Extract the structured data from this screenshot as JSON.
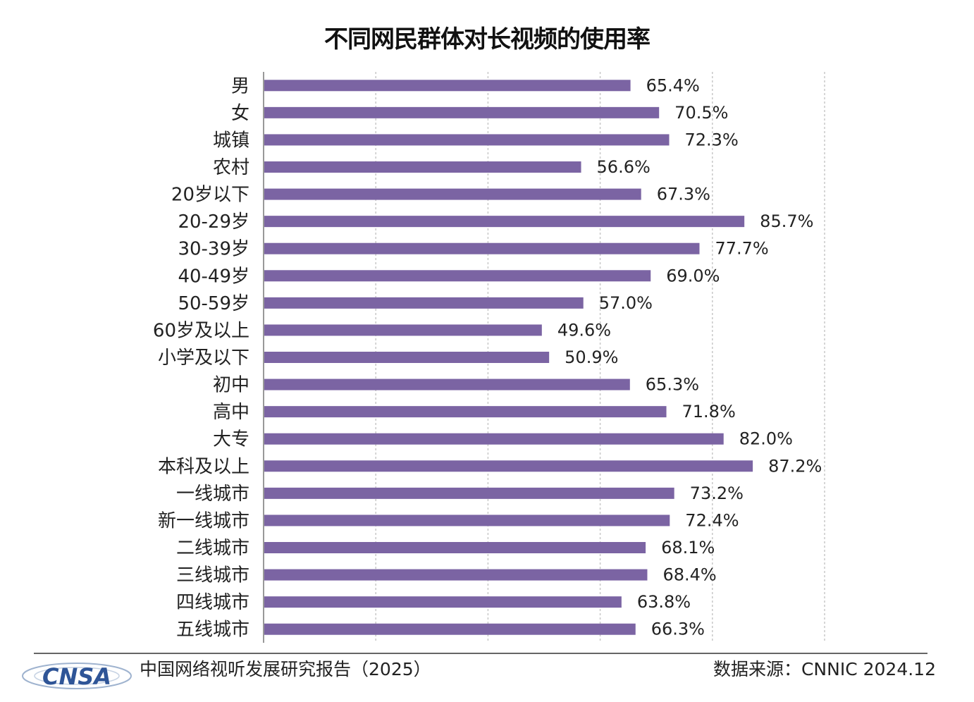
{
  "chart_data": {
    "type": "bar",
    "orientation": "horizontal",
    "title": "不同网民群体对长视频的使用率",
    "categories": [
      "男",
      "女",
      "城镇",
      "农村",
      "20岁以下",
      "20-29岁",
      "30-39岁",
      "40-49岁",
      "50-59岁",
      "60岁及以上",
      "小学及以下",
      "初中",
      "高中",
      "大专",
      "本科及以上",
      "一线城市",
      "新一线城市",
      "二线城市",
      "三线城市",
      "四线城市",
      "五线城市"
    ],
    "values": [
      65.4,
      70.5,
      72.3,
      56.6,
      67.3,
      85.7,
      77.7,
      69.0,
      57.0,
      49.6,
      50.9,
      65.3,
      71.8,
      82.0,
      87.2,
      73.2,
      72.4,
      68.1,
      68.4,
      63.8,
      66.3
    ],
    "data_labels": [
      "65.4%",
      "70.5%",
      "72.3%",
      "56.6%",
      "67.3%",
      "85.7%",
      "77.7%",
      "69.0%",
      "57.0%",
      "49.6%",
      "50.9%",
      "65.3%",
      "71.8%",
      "82.0%",
      "87.2%",
      "73.2%",
      "72.4%",
      "68.1%",
      "68.4%",
      "63.8%",
      "66.3%"
    ],
    "xlim": [
      0,
      100
    ],
    "grid": true,
    "bar_color": "#7b64a3"
  },
  "footer": {
    "logo_text": "CNSA",
    "report_name": "中国网络视听发展研究报告（2025）",
    "data_source": "数据来源：CNNIC  2024.12"
  }
}
